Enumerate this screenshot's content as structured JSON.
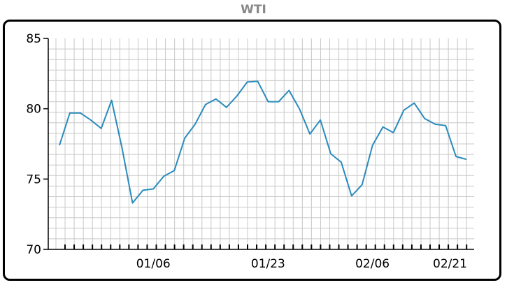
{
  "chart_data": {
    "type": "line",
    "title": "WTI",
    "xlabel": "",
    "ylabel": "",
    "ylim": [
      70,
      85
    ],
    "yticks": [
      70,
      75,
      80,
      85
    ],
    "xtick_labels": [
      "01/06",
      "01/23",
      "02/06",
      "02/21"
    ],
    "grid": true,
    "line_color": "#2a8bbd",
    "values": [
      77.4,
      79.7,
      79.7,
      79.2,
      78.6,
      80.6,
      77.2,
      73.3,
      74.2,
      74.3,
      75.2,
      75.6,
      77.9,
      78.9,
      80.3,
      80.7,
      80.1,
      80.9,
      81.9,
      81.95,
      80.5,
      80.5,
      81.3,
      80.0,
      78.2,
      79.2,
      76.8,
      76.2,
      73.8,
      74.6,
      77.4,
      78.7,
      78.3,
      79.9,
      80.4,
      79.3,
      78.9,
      78.8,
      76.6,
      76.4
    ]
  }
}
